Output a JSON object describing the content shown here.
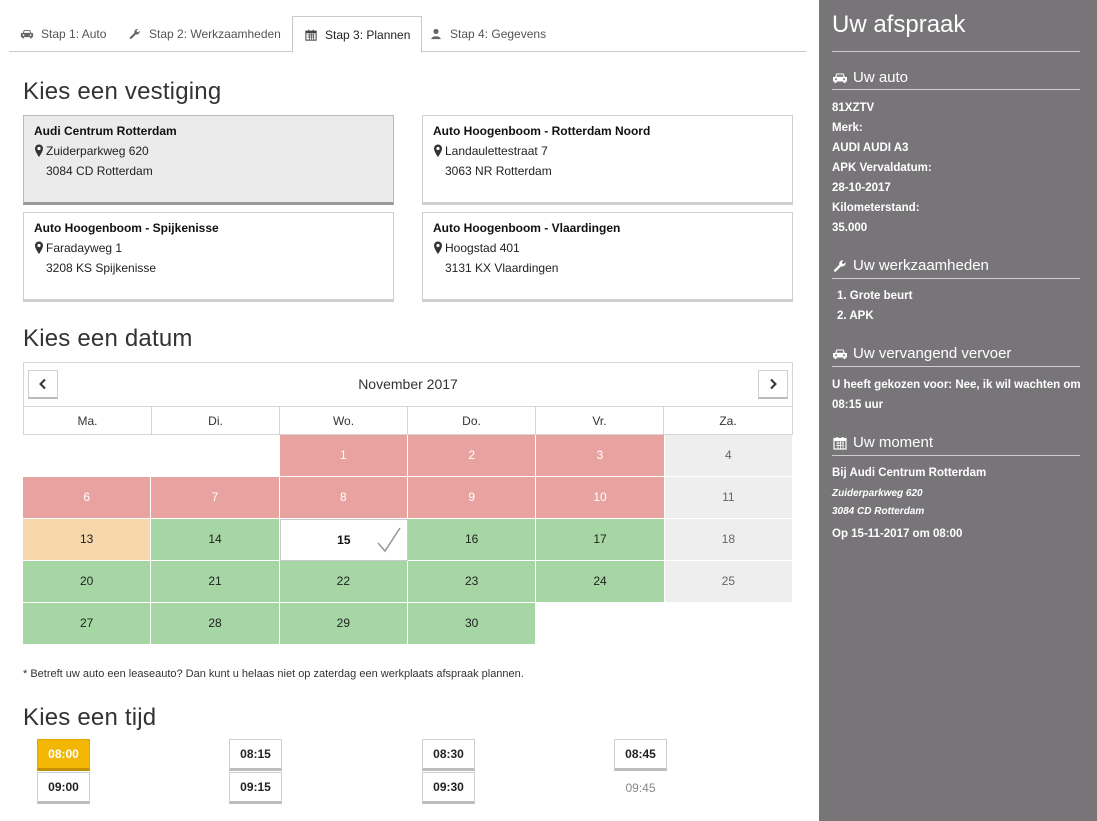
{
  "tabs": [
    {
      "label": "Stap 1: Auto",
      "icon": "car-icon"
    },
    {
      "label": "Stap 2: Werkzaamheden",
      "icon": "wrench-icon"
    },
    {
      "label": "Stap 3: Plannen",
      "icon": "calendar-icon",
      "active": true
    },
    {
      "label": "Stap 4: Gegevens",
      "icon": "user-icon"
    }
  ],
  "headings": {
    "vestiging": "Kies een vestiging",
    "datum": "Kies een datum",
    "tijd": "Kies een tijd"
  },
  "locations": [
    {
      "name": "Audi Centrum Rotterdam",
      "street": "Zuiderparkweg 620",
      "city": "3084 CD  Rotterdam",
      "selected": true
    },
    {
      "name": "Auto Hoogenboom - Rotterdam Noord",
      "street": "Landaulettestraat 7",
      "city": "3063 NR  Rotterdam"
    },
    {
      "name": "Auto Hoogenboom - Spijkenisse",
      "street": "Faradayweg 1",
      "city": "3208 KS  Spijkenisse"
    },
    {
      "name": "Auto Hoogenboom - Vlaardingen",
      "street": "Hoogstad 401",
      "city": "3131 KX  Vlaardingen"
    }
  ],
  "calendar": {
    "month": "November 2017",
    "weekdays": [
      "Ma.",
      "Di.",
      "Wo.",
      "Do.",
      "Vr.",
      "Za."
    ],
    "colors": {
      "full": "#e8a3a1",
      "available": "#a5d6a3",
      "limited": "#f6d7ab",
      "saturday": "#eeeeee"
    },
    "weeks": [
      [
        {
          "d": "",
          "s": "empty"
        },
        {
          "d": "",
          "s": "empty"
        },
        {
          "d": "1",
          "s": "full"
        },
        {
          "d": "2",
          "s": "full"
        },
        {
          "d": "3",
          "s": "full"
        },
        {
          "d": "4",
          "s": "sat"
        }
      ],
      [
        {
          "d": "6",
          "s": "full"
        },
        {
          "d": "7",
          "s": "full"
        },
        {
          "d": "8",
          "s": "full"
        },
        {
          "d": "9",
          "s": "full"
        },
        {
          "d": "10",
          "s": "full"
        },
        {
          "d": "11",
          "s": "sat"
        }
      ],
      [
        {
          "d": "13",
          "s": "few"
        },
        {
          "d": "14",
          "s": "avail"
        },
        {
          "d": "15",
          "s": "sel"
        },
        {
          "d": "16",
          "s": "avail"
        },
        {
          "d": "17",
          "s": "avail"
        },
        {
          "d": "18",
          "s": "sat"
        }
      ],
      [
        {
          "d": "20",
          "s": "avail"
        },
        {
          "d": "21",
          "s": "avail"
        },
        {
          "d": "22",
          "s": "avail"
        },
        {
          "d": "23",
          "s": "avail"
        },
        {
          "d": "24",
          "s": "avail"
        },
        {
          "d": "25",
          "s": "sat"
        }
      ],
      [
        {
          "d": "27",
          "s": "avail"
        },
        {
          "d": "28",
          "s": "avail"
        },
        {
          "d": "29",
          "s": "avail"
        },
        {
          "d": "30",
          "s": "avail"
        },
        {
          "d": "",
          "s": "empty"
        },
        {
          "d": "",
          "s": "empty"
        }
      ]
    ]
  },
  "note": "* Betreft uw auto een leaseauto? Dan kunt u helaas niet op zaterdag een werkplaats afspraak plannen.",
  "times": [
    {
      "t": "08:00",
      "state": "active"
    },
    {
      "t": "08:15",
      "state": "normal"
    },
    {
      "t": "08:30",
      "state": "normal"
    },
    {
      "t": "08:45",
      "state": "normal"
    },
    {
      "t": "09:00",
      "state": "normal"
    },
    {
      "t": "09:15",
      "state": "normal"
    },
    {
      "t": "09:30",
      "state": "normal"
    },
    {
      "t": "09:45",
      "state": "disabled"
    }
  ],
  "sidebar": {
    "title": "Uw afspraak",
    "auto": {
      "title": "Uw auto",
      "plate": "81XZTV",
      "merk_label": "Merk:",
      "merk": "AUDI AUDI A3",
      "apk_label": "APK Vervaldatum:",
      "apk": "28-10-2017",
      "km_label": "Kilometerstand:",
      "km": "35.000"
    },
    "werk": {
      "title": "Uw werkzaamheden",
      "items": [
        "1. Grote beurt",
        "2. APK"
      ]
    },
    "vervoer": {
      "title": "Uw vervangend vervoer",
      "line1": "U heeft gekozen voor: Nee, ik wil wachten om",
      "line2": "08:15 uur"
    },
    "moment": {
      "title": "Uw moment",
      "location": "Bij Audi Centrum Rotterdam",
      "street": "Zuiderparkweg 620",
      "city": "3084 CD  Rotterdam",
      "when": "Op 15-11-2017 om 08:00"
    }
  }
}
